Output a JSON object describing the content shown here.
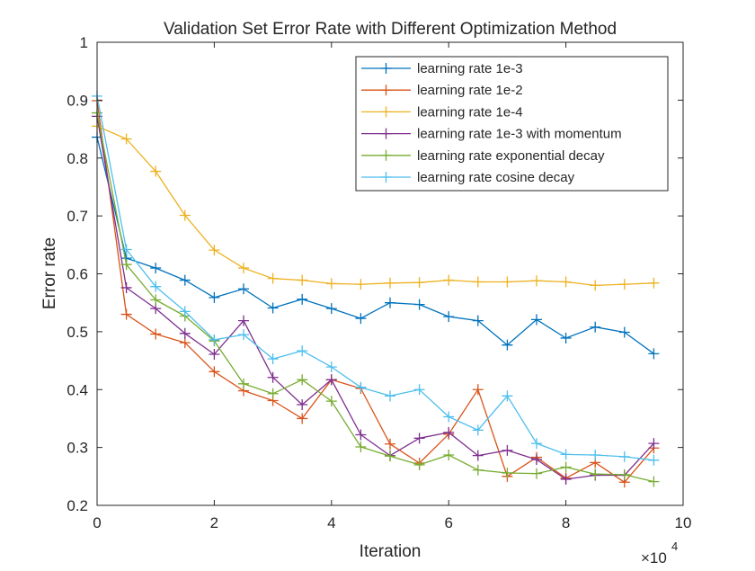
{
  "chart_data": {
    "type": "line",
    "title": "Validation Set Error Rate with Different Optimization Method",
    "xlabel": "Iteration",
    "ylabel": "Error rate",
    "x_multiplier_label": "×10",
    "x_multiplier_exponent": "4",
    "xlim": [
      0,
      10
    ],
    "ylim": [
      0.2,
      1.0
    ],
    "x_ticks": [
      0,
      2,
      4,
      6,
      8,
      10
    ],
    "y_ticks": [
      0.2,
      0.3,
      0.4,
      0.5,
      0.6,
      0.7,
      0.8,
      0.9,
      1.0
    ],
    "x_tick_labels": [
      "0",
      "2",
      "4",
      "6",
      "8",
      "10"
    ],
    "y_tick_labels": [
      "0.2",
      "0.3",
      "0.4",
      "0.5",
      "0.6",
      "0.7",
      "0.8",
      "0.9",
      "1"
    ],
    "grid": false,
    "legend_position": "top-right",
    "marker": "plus",
    "x": [
      0,
      0.5,
      1.0,
      1.5,
      2.0,
      2.5,
      3.0,
      3.5,
      4.0,
      4.5,
      5.0,
      5.5,
      6.0,
      6.5,
      7.0,
      7.5,
      8.0,
      8.5,
      9.0,
      9.5
    ],
    "series": [
      {
        "name": "learning rate 1e-3",
        "color": "#0072BD",
        "values": [
          0.836,
          0.627,
          0.61,
          0.589,
          0.559,
          0.574,
          0.541,
          0.556,
          0.54,
          0.523,
          0.55,
          0.547,
          0.526,
          0.519,
          0.477,
          0.521,
          0.489,
          0.508,
          0.499,
          0.462
        ]
      },
      {
        "name": "learning rate 1e-2",
        "color": "#D95319",
        "values": [
          0.899,
          0.53,
          0.496,
          0.481,
          0.431,
          0.398,
          0.381,
          0.35,
          0.417,
          0.402,
          0.306,
          0.273,
          0.323,
          0.4,
          0.25,
          0.283,
          0.247,
          0.274,
          0.24,
          0.299
        ]
      },
      {
        "name": "learning rate 1e-4",
        "color": "#EDB120",
        "values": [
          0.855,
          0.833,
          0.777,
          0.701,
          0.641,
          0.61,
          0.592,
          0.589,
          0.583,
          0.582,
          0.584,
          0.585,
          0.589,
          0.586,
          0.586,
          0.588,
          0.586,
          0.58,
          0.582,
          0.584
        ]
      },
      {
        "name": "learning rate 1e-3 with momentum",
        "color": "#7E2F8E",
        "values": [
          0.872,
          0.576,
          0.54,
          0.497,
          0.461,
          0.519,
          0.421,
          0.374,
          0.417,
          0.322,
          0.286,
          0.316,
          0.326,
          0.286,
          0.295,
          0.279,
          0.245,
          0.252,
          0.252,
          0.307
        ]
      },
      {
        "name": "learning rate exponential decay",
        "color": "#77AC30",
        "values": [
          0.878,
          0.616,
          0.555,
          0.527,
          0.484,
          0.41,
          0.393,
          0.417,
          0.38,
          0.301,
          0.285,
          0.27,
          0.287,
          0.261,
          0.256,
          0.255,
          0.266,
          0.254,
          0.253,
          0.241
        ]
      },
      {
        "name": "learning rate cosine decay",
        "color": "#4DBEEE",
        "values": [
          0.907,
          0.642,
          0.578,
          0.535,
          0.486,
          0.495,
          0.453,
          0.467,
          0.439,
          0.404,
          0.389,
          0.4,
          0.353,
          0.33,
          0.389,
          0.307,
          0.288,
          0.287,
          0.284,
          0.278
        ]
      }
    ]
  }
}
